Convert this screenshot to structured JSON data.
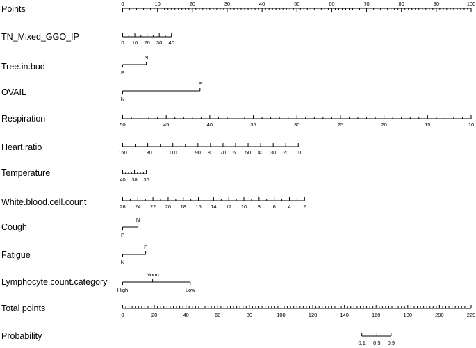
{
  "chart_data": {
    "type": "nomogram",
    "rows": [
      {
        "name": "Points",
        "kind": "scale",
        "labels_side": "above",
        "range": [
          0,
          100
        ],
        "major": [
          0,
          10,
          20,
          30,
          40,
          50,
          60,
          70,
          80,
          90,
          100
        ],
        "minor_step": 1
      },
      {
        "name": "TN_Mixed_GGO_IP",
        "kind": "scale",
        "labels_side": "below",
        "range": [
          0,
          14
        ],
        "major": [
          0,
          10,
          20,
          30,
          40
        ],
        "major_points": [
          0,
          3.5,
          7,
          10.5,
          14
        ],
        "minor_step_points": 1.75
      },
      {
        "name": "Tree.in.bud",
        "kind": "categorical",
        "levels": [
          {
            "label": "P",
            "points": 0,
            "side": "below"
          },
          {
            "label": "N",
            "points": 6.8,
            "side": "above"
          }
        ]
      },
      {
        "name": "OVAIL",
        "kind": "categorical",
        "levels": [
          {
            "label": "N",
            "points": 0,
            "side": "below"
          },
          {
            "label": "P",
            "points": 22.2,
            "side": "above"
          }
        ]
      },
      {
        "name": "Respiration",
        "kind": "scale",
        "labels_side": "below",
        "major": [
          50,
          45,
          40,
          35,
          30,
          25,
          20,
          15,
          10
        ],
        "major_points": [
          0,
          12.5,
          25,
          37.5,
          50,
          62.5,
          75,
          87.5,
          100
        ],
        "minor_step_points": 2.5
      },
      {
        "name": "Heart.ratio",
        "kind": "scale",
        "labels_side": "below",
        "values": [
          150,
          140,
          130,
          120,
          110,
          100,
          90,
          80,
          70,
          60,
          50,
          40,
          30,
          20,
          10
        ],
        "points": [
          0,
          3.6,
          7.2,
          10.8,
          14.4,
          18,
          21.6,
          25.2,
          28.8,
          32.4,
          36,
          39.6,
          43.2,
          46.8,
          50.4
        ],
        "labeled": [
          150,
          130,
          110,
          90,
          80,
          70,
          60,
          50,
          40,
          30,
          20,
          10
        ]
      },
      {
        "name": "Temperature",
        "kind": "scale",
        "labels_side": "below",
        "range_points": [
          0,
          6.8
        ],
        "major": [
          40,
          38,
          36
        ],
        "major_points": [
          0,
          3.4,
          6.8
        ],
        "minor_step_points": 0.85
      },
      {
        "name": "White.blood.cell.count",
        "kind": "scale",
        "labels_side": "below",
        "major": [
          26,
          24,
          22,
          20,
          18,
          16,
          14,
          12,
          10,
          8,
          6,
          4,
          2
        ],
        "major_points": [
          0,
          4.35,
          8.7,
          13.05,
          17.4,
          21.75,
          26.1,
          30.45,
          34.8,
          39.15,
          43.5,
          47.85,
          52.2
        ],
        "minor_step_points": 2.175
      },
      {
        "name": "Cough",
        "kind": "categorical",
        "levels": [
          {
            "label": "P",
            "points": 0,
            "side": "below"
          },
          {
            "label": "N",
            "points": 4.4,
            "side": "above"
          }
        ]
      },
      {
        "name": "Fatigue",
        "kind": "categorical",
        "levels": [
          {
            "label": "N",
            "points": 0,
            "side": "below"
          },
          {
            "label": "P",
            "points": 6.6,
            "side": "above"
          }
        ]
      },
      {
        "name": "Lymphocyte.count.category",
        "kind": "categorical",
        "levels": [
          {
            "label": "High",
            "points": 0,
            "side": "below"
          },
          {
            "label": "Norm",
            "points": 8.6,
            "side": "above"
          },
          {
            "label": "Low",
            "points": 19.4,
            "side": "below"
          }
        ]
      },
      {
        "name": "Total points",
        "kind": "scale",
        "labels_side": "below",
        "range": [
          0,
          220
        ],
        "major": [
          0,
          20,
          40,
          60,
          80,
          100,
          120,
          140,
          160,
          180,
          200,
          220
        ],
        "minor_step": 2
      },
      {
        "name": "Probability",
        "kind": "scale",
        "labels_side": "below",
        "values": [
          0.1,
          0.5,
          0.9
        ],
        "total_points": [
          151,
          160.5,
          169.5
        ]
      }
    ]
  }
}
